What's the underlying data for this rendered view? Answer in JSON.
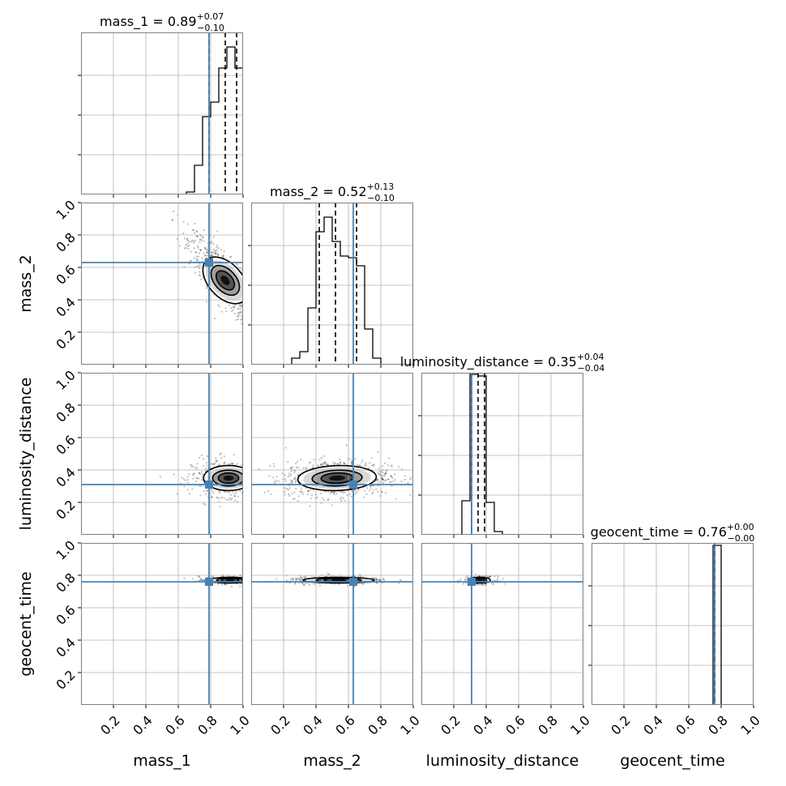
{
  "chart_data": {
    "type": "corner",
    "parameters": [
      "mass_1",
      "mass_2",
      "luminosity_distance",
      "geocent_time"
    ],
    "axis_labels": [
      "mass_1",
      "mass_2",
      "luminosity_distance",
      "geocent_time"
    ],
    "range": [
      0,
      1
    ],
    "tick_labels": [
      "0.2",
      "0.4",
      "0.6",
      "0.8",
      "1.0"
    ],
    "truths": [
      0.79,
      0.63,
      0.31,
      0.76
    ],
    "colors": {
      "truth": "#4682b4",
      "hist": "#000000",
      "grid": "#b0b0b0",
      "frame": "#808080"
    },
    "grid": true,
    "titles": [
      {
        "label": "mass_1 = 0.89",
        "upper": "+0.07",
        "lower": "−0.10",
        "median": 0.89,
        "plus": 0.07,
        "minus": 0.1
      },
      {
        "label": "mass_2 = 0.52",
        "upper": "+0.13",
        "lower": "−0.10",
        "median": 0.52,
        "plus": 0.13,
        "minus": 0.1
      },
      {
        "label": "luminosity_distance = 0.35",
        "upper": "+0.04",
        "lower": "−0.04",
        "median": 0.35,
        "plus": 0.04,
        "minus": 0.04
      },
      {
        "label": "geocent_time = 0.76",
        "upper": "+0.00",
        "lower": "−0.00",
        "median": 0.76,
        "plus": 0.0,
        "minus": 0.0
      }
    ],
    "marginals": [
      {
        "parameter": "mass_1",
        "bins": [
          0.6,
          0.65,
          0.7,
          0.75,
          0.8,
          0.85,
          0.9,
          0.95,
          1.0
        ],
        "density": [
          0.0,
          0.015,
          0.18,
          0.48,
          0.57,
          0.78,
          0.91,
          0.78
        ],
        "ylim": [
          0,
          1
        ]
      },
      {
        "parameter": "mass_2",
        "bins": [
          0.0,
          0.25,
          0.3,
          0.35,
          0.4,
          0.45,
          0.5,
          0.55,
          0.6,
          0.65,
          0.7,
          0.75,
          0.8,
          0.85,
          1.0
        ],
        "density": [
          0.0,
          0.04,
          0.08,
          0.35,
          0.82,
          0.91,
          0.76,
          0.67,
          0.66,
          0.61,
          0.22,
          0.04,
          0.0,
          0.0
        ],
        "ylim": [
          0,
          1
        ]
      },
      {
        "parameter": "luminosity_distance",
        "bins": [
          0.0,
          0.1,
          0.15,
          0.2,
          0.25,
          0.3,
          0.35,
          0.4,
          0.45,
          0.5,
          1.0
        ],
        "density": [
          0.0,
          0.0,
          0.0,
          0.0,
          0.21,
          0.99,
          0.98,
          0.2,
          0.02,
          0.0
        ],
        "ylim": [
          0,
          1
        ]
      },
      {
        "parameter": "geocent_time",
        "bins": [
          0.0,
          0.75,
          0.8,
          1.0
        ],
        "density": [
          0.0,
          0.985,
          0.0
        ],
        "ylim": [
          0,
          1
        ]
      }
    ],
    "joint": [
      {
        "x": "mass_1",
        "y": "mass_2",
        "center": [
          0.89,
          0.52
        ],
        "spread": [
          0.07,
          0.09
        ],
        "corr": -0.85,
        "count": 800
      },
      {
        "x": "mass_1",
        "y": "luminosity_distance",
        "center": [
          0.91,
          0.35
        ],
        "spread": [
          0.07,
          0.035
        ],
        "corr": 0.0,
        "count": 600
      },
      {
        "x": "mass_2",
        "y": "luminosity_distance",
        "center": [
          0.53,
          0.35
        ],
        "spread": [
          0.1,
          0.035
        ],
        "corr": 0.1,
        "count": 900
      },
      {
        "x": "mass_1",
        "y": "geocent_time",
        "center": [
          0.92,
          0.77
        ],
        "spread": [
          0.06,
          0.008
        ],
        "corr": 0.0,
        "count": 300
      },
      {
        "x": "mass_2",
        "y": "geocent_time",
        "center": [
          0.54,
          0.77
        ],
        "spread": [
          0.1,
          0.008
        ],
        "corr": 0.0,
        "count": 300
      },
      {
        "x": "luminosity_distance",
        "y": "geocent_time",
        "center": [
          0.36,
          0.77
        ],
        "spread": [
          0.03,
          0.008
        ],
        "corr": 0.0,
        "count": 250
      }
    ]
  }
}
